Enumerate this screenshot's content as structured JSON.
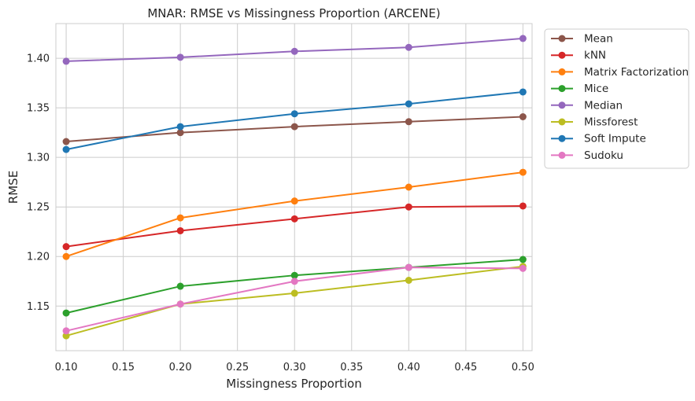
{
  "chart_data": {
    "type": "line",
    "title": "MNAR: RMSE vs Missingness Proportion (ARCENE)",
    "xlabel": "Missingness Proportion",
    "ylabel": "RMSE",
    "x": [
      0.1,
      0.2,
      0.3,
      0.4,
      0.5
    ],
    "xlim": [
      0.091,
      0.508
    ],
    "ylim": [
      1.105,
      1.435
    ],
    "xticks": [
      "0.10",
      "0.15",
      "0.20",
      "0.25",
      "0.30",
      "0.35",
      "0.40",
      "0.45",
      "0.50"
    ],
    "xtick_values": [
      0.1,
      0.15,
      0.2,
      0.25,
      0.3,
      0.35,
      0.4,
      0.45,
      0.5
    ],
    "yticks": [
      "1.15",
      "1.20",
      "1.25",
      "1.30",
      "1.35",
      "1.40"
    ],
    "ytick_values": [
      1.15,
      1.2,
      1.25,
      1.3,
      1.35,
      1.4
    ],
    "grid": true,
    "legend_position": "outside-top-right",
    "series": [
      {
        "name": "Mean",
        "color": "#8c564b",
        "values": [
          1.316,
          1.325,
          1.331,
          1.336,
          1.341
        ]
      },
      {
        "name": "kNN",
        "color": "#d62728",
        "values": [
          1.21,
          1.226,
          1.238,
          1.25,
          1.251
        ]
      },
      {
        "name": "Matrix Factorization",
        "color": "#ff7f0e",
        "values": [
          1.2,
          1.239,
          1.256,
          1.27,
          1.285
        ]
      },
      {
        "name": "Mice",
        "color": "#2ca02c",
        "values": [
          1.143,
          1.17,
          1.181,
          1.189,
          1.197
        ]
      },
      {
        "name": "Median",
        "color": "#9467bd",
        "values": [
          1.397,
          1.401,
          1.407,
          1.411,
          1.42
        ]
      },
      {
        "name": "Missforest",
        "color": "#bcbd22",
        "values": [
          1.12,
          1.152,
          1.163,
          1.176,
          1.19
        ]
      },
      {
        "name": "Soft Impute",
        "color": "#1f77b4",
        "values": [
          1.308,
          1.331,
          1.344,
          1.354,
          1.366
        ]
      },
      {
        "name": "Sudoku",
        "color": "#e377c2",
        "values": [
          1.125,
          1.152,
          1.175,
          1.189,
          1.188
        ]
      }
    ]
  }
}
